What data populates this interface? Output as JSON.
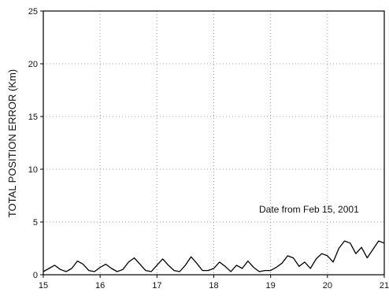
{
  "chart_data": {
    "type": "line",
    "title": "",
    "xlabel": "",
    "ylabel": "TOTAL POSITION ERROR (Km)",
    "xlim": [
      15,
      21
    ],
    "ylim": [
      0,
      25
    ],
    "xticks": [
      15,
      16,
      17,
      18,
      19,
      20,
      21
    ],
    "yticks": [
      0,
      5,
      10,
      15,
      20,
      25
    ],
    "grid": "dotted",
    "annotation": "Date from Feb 15, 2001",
    "line_color": "#000000",
    "series": [
      {
        "x": [
          15.0,
          15.1,
          15.2,
          15.3,
          15.4,
          15.5,
          15.6,
          15.7,
          15.8,
          15.9,
          16.0,
          16.1,
          16.2,
          16.3,
          16.4,
          16.5,
          16.6,
          16.7,
          16.8,
          16.9,
          17.0,
          17.1,
          17.2,
          17.3,
          17.4,
          17.5,
          17.6,
          17.7,
          17.8,
          17.9,
          18.0,
          18.1,
          18.2,
          18.3,
          18.4,
          18.5,
          18.6,
          18.7,
          18.8,
          18.9,
          19.0,
          19.1,
          19.2,
          19.3,
          19.4,
          19.5,
          19.6,
          19.7,
          19.8,
          19.9,
          20.0,
          20.1,
          20.2,
          20.3,
          20.4,
          20.5,
          20.6,
          20.7,
          20.8,
          20.9,
          21.0
        ],
        "values": [
          0.3,
          0.6,
          0.9,
          0.5,
          0.3,
          0.6,
          1.3,
          1.0,
          0.4,
          0.3,
          0.7,
          1.0,
          0.6,
          0.3,
          0.5,
          1.2,
          1.6,
          1.0,
          0.4,
          0.3,
          0.9,
          1.5,
          0.9,
          0.4,
          0.3,
          0.9,
          1.7,
          1.1,
          0.4,
          0.4,
          0.6,
          1.2,
          0.8,
          0.3,
          0.9,
          0.6,
          1.3,
          0.7,
          0.3,
          0.4,
          0.4,
          0.7,
          1.1,
          1.8,
          1.6,
          0.8,
          1.2,
          0.6,
          1.5,
          2.0,
          1.8,
          1.2,
          2.5,
          3.2,
          3.0,
          2.0,
          2.6,
          1.6,
          2.4,
          3.2,
          3.0
        ]
      }
    ]
  }
}
